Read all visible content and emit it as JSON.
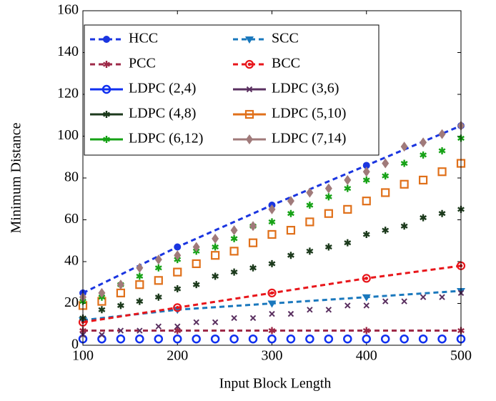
{
  "chart_data": {
    "type": "line",
    "x_label": "Input Block Length",
    "y_label": "Minimum Distance",
    "xlim": [
      100,
      500
    ],
    "xticks": [
      100,
      200,
      300,
      400,
      500
    ],
    "ylim": [
      0,
      160
    ],
    "yticks": [
      0,
      20,
      40,
      60,
      80,
      100,
      120,
      140,
      160
    ],
    "grid": false,
    "legend": "upper left",
    "series": [
      {
        "name": "HCC",
        "color": "#1a35e0",
        "line": "dashed",
        "marker": "circle",
        "x": [
          100,
          200,
          300,
          400,
          500
        ],
        "values": [
          25,
          47,
          67,
          86,
          105
        ]
      },
      {
        "name": "SCC",
        "color": "#1a78bd",
        "line": "dashed",
        "marker": "triangle",
        "x": [
          100,
          200,
          300,
          400,
          500
        ],
        "values": [
          12,
          17,
          20,
          23,
          26
        ]
      },
      {
        "name": "PCC",
        "color": "#9e2a48",
        "line": "dashed",
        "marker": "star",
        "x": [
          100,
          200,
          300,
          400,
          500
        ],
        "values": [
          7,
          7,
          7,
          7,
          7
        ]
      },
      {
        "name": "BCC",
        "color": "#e8161b",
        "line": "dashed",
        "marker": "dotcircle",
        "x": [
          100,
          200,
          300,
          400,
          500
        ],
        "values": [
          11,
          18,
          25,
          32,
          38
        ]
      },
      {
        "name": "LDPC (2,4)",
        "color": "#1030f0",
        "line": "markers",
        "marker": "ocircle",
        "x": [
          100,
          120,
          140,
          160,
          180,
          200,
          220,
          240,
          260,
          280,
          300,
          320,
          340,
          360,
          380,
          400,
          420,
          440,
          460,
          480,
          500
        ],
        "values": [
          3,
          3,
          3,
          3,
          3,
          3,
          3,
          3,
          3,
          3,
          3,
          3,
          3,
          3,
          3,
          3,
          3,
          3,
          3,
          3,
          3
        ]
      },
      {
        "name": "LDPC (3,6)",
        "color": "#5a3060",
        "line": "markers",
        "marker": "x",
        "x": [
          100,
          120,
          140,
          160,
          180,
          200,
          220,
          240,
          260,
          280,
          300,
          320,
          340,
          360,
          380,
          400,
          420,
          440,
          460,
          480,
          500
        ],
        "values": [
          5,
          5,
          7,
          7,
          9,
          9,
          11,
          11,
          13,
          13,
          15,
          15,
          17,
          17,
          19,
          19,
          21,
          21,
          23,
          23,
          25
        ]
      },
      {
        "name": "LDPC (4,8)",
        "color": "#1c3a1c",
        "line": "markers",
        "marker": "star",
        "x": [
          100,
          120,
          140,
          160,
          180,
          200,
          220,
          240,
          260,
          280,
          300,
          320,
          340,
          360,
          380,
          400,
          420,
          440,
          460,
          480,
          500
        ],
        "values": [
          13,
          17,
          19,
          21,
          23,
          27,
          29,
          33,
          35,
          37,
          39,
          43,
          45,
          47,
          49,
          53,
          55,
          57,
          61,
          63,
          65
        ]
      },
      {
        "name": "LDPC (5,10)",
        "color": "#e0701a",
        "line": "markers",
        "marker": "square",
        "x": [
          100,
          120,
          140,
          160,
          180,
          200,
          220,
          240,
          260,
          280,
          300,
          320,
          340,
          360,
          380,
          400,
          420,
          440,
          460,
          480,
          500
        ],
        "values": [
          19,
          21,
          25,
          29,
          31,
          35,
          39,
          43,
          45,
          49,
          53,
          55,
          59,
          63,
          65,
          69,
          73,
          77,
          79,
          83,
          87
        ]
      },
      {
        "name": "LDPC (6,12)",
        "color": "#16a216",
        "line": "markers",
        "marker": "star",
        "x": [
          100,
          120,
          140,
          160,
          180,
          200,
          220,
          240,
          260,
          280,
          300,
          320,
          340,
          360,
          380,
          400,
          420,
          440,
          460,
          480,
          500
        ],
        "values": [
          21,
          23,
          29,
          33,
          37,
          41,
          45,
          47,
          51,
          57,
          59,
          63,
          67,
          71,
          75,
          79,
          81,
          87,
          91,
          93,
          99
        ]
      },
      {
        "name": "LDPC (7,14)",
        "color": "#a07a7a",
        "line": "markers",
        "marker": "diamond",
        "x": [
          100,
          120,
          140,
          160,
          180,
          200,
          220,
          240,
          260,
          280,
          300,
          320,
          340,
          360,
          380,
          400,
          420,
          440,
          460,
          480,
          500
        ],
        "values": [
          23,
          25,
          29,
          37,
          41,
          43,
          47,
          51,
          55,
          57,
          65,
          69,
          73,
          75,
          79,
          83,
          87,
          95,
          97,
          101,
          105
        ]
      }
    ]
  }
}
